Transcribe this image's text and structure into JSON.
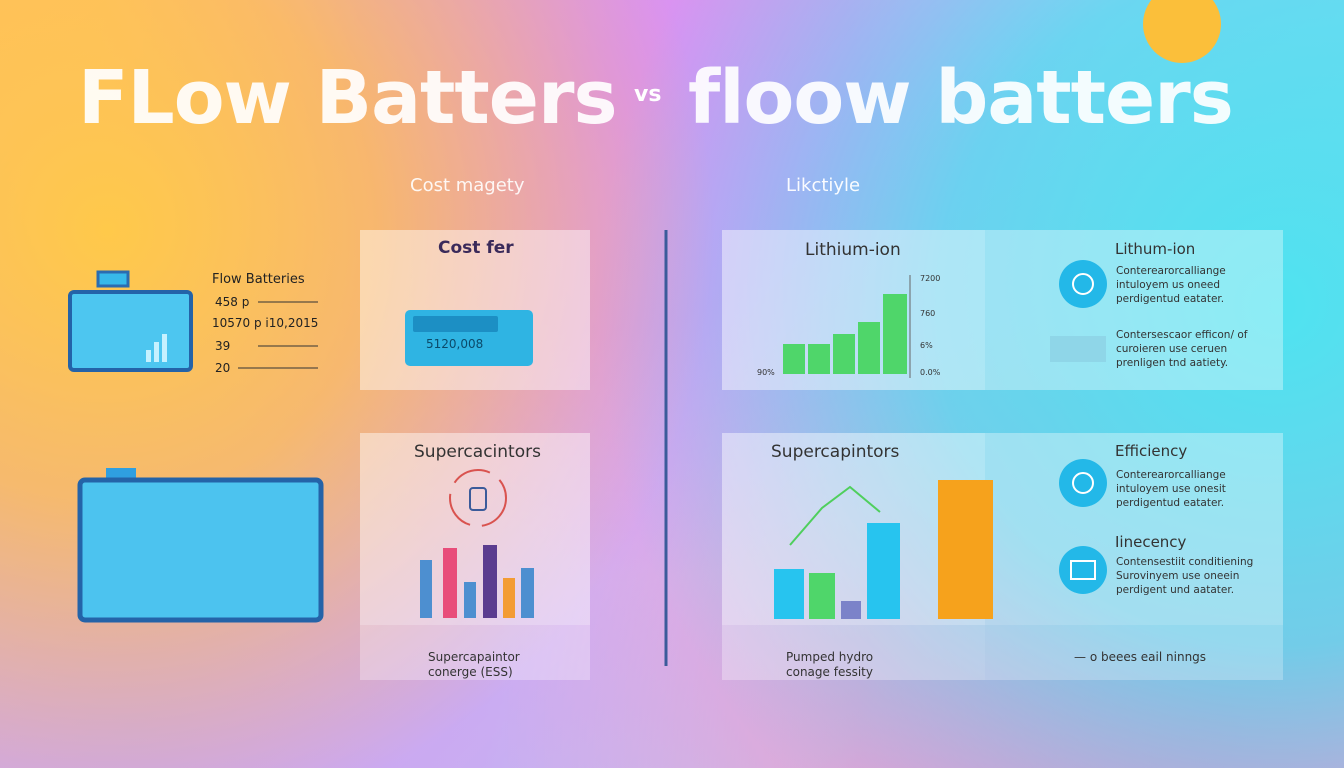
{
  "header": {
    "title_left": "FLow Batters",
    "vs": "vs",
    "title_right": "floow batters"
  },
  "sections": {
    "left": "Cost magety",
    "right": "Likctiyle"
  },
  "legend": {
    "title": "Flow Batteries",
    "rows": [
      "458 p",
      "10570 p i10,2015",
      "39",
      "20"
    ]
  },
  "panels": {
    "cost": {
      "title": "Cost fer",
      "display": "5120,008"
    },
    "supercap_left": {
      "title": "Supercacintors",
      "footer": [
        "Supercapaintor",
        "conerge (ESS)"
      ]
    },
    "lithium_chart": {
      "title": "Lithium-ion",
      "ticks": [
        "7200",
        "760",
        "6%",
        "0.0%"
      ],
      "left_label": "90%"
    },
    "lithium_list": {
      "title": "Lithum-ion",
      "items": [
        [
          "Conterearorcalliange",
          "intuloyem us oneed",
          "perdigentud eatater."
        ],
        [
          "Contersescaor efficon/ of",
          "curoieren use ceruen",
          "prenligen tnd aatiety."
        ]
      ]
    },
    "supercap_right": {
      "title": "Supercapintors",
      "footer": [
        "Pumped hydro",
        "conage fessity"
      ]
    },
    "efficiency": {
      "title": "Efficiency",
      "items": [
        "Conterearorcalliange",
        "intuloyem use onesit",
        "perdigentud eatater."
      ]
    },
    "inefficiency": {
      "title": "Iinecency",
      "items": [
        "Contensestiit conditiening",
        "Surovinyem use oneein",
        "perdigent und aatater."
      ]
    },
    "footnote": "— o beees eail ninngs"
  }
}
